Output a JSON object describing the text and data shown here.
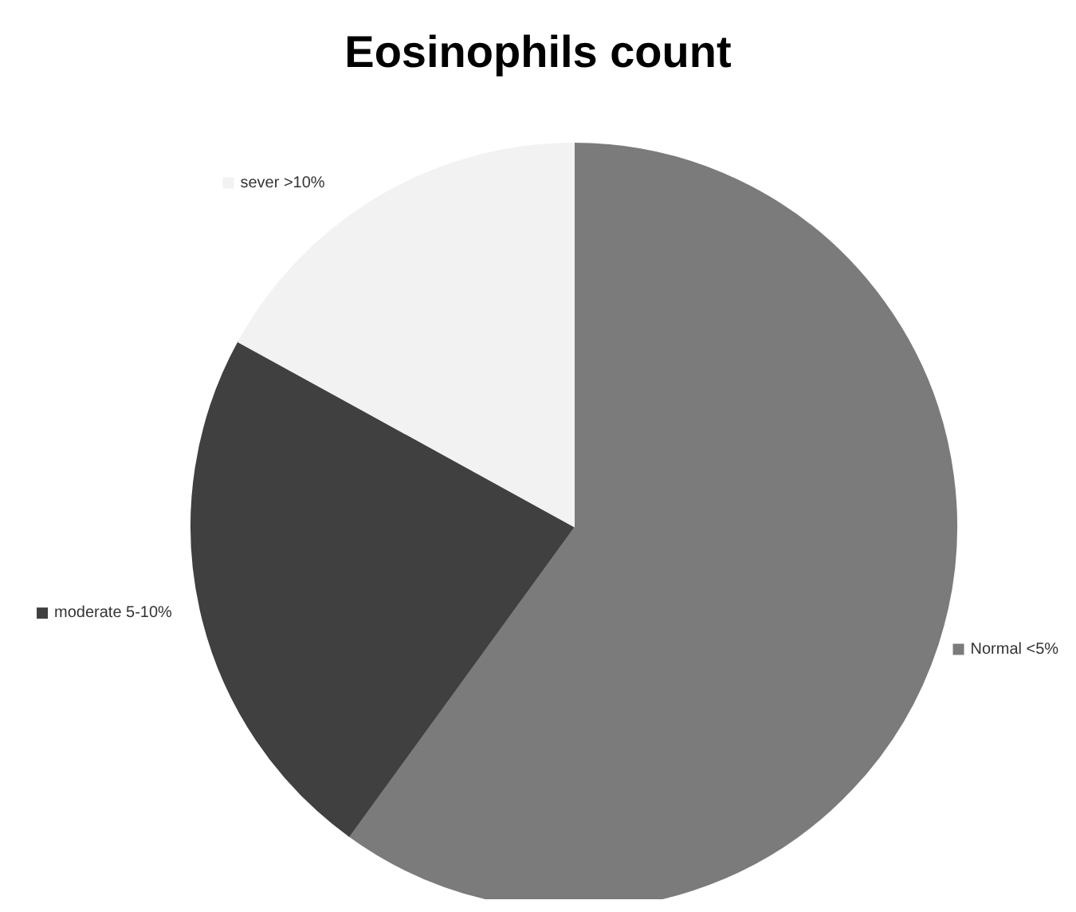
{
  "chart_data": {
    "type": "pie",
    "title": "Eosinophils count",
    "categories": [
      "Normal <5%",
      "moderate 5-10%",
      "sever >10%"
    ],
    "values": [
      60,
      23,
      17
    ],
    "colors": [
      "#7b7b7b",
      "#404040",
      "#f2f2f2"
    ],
    "legend": "right"
  }
}
